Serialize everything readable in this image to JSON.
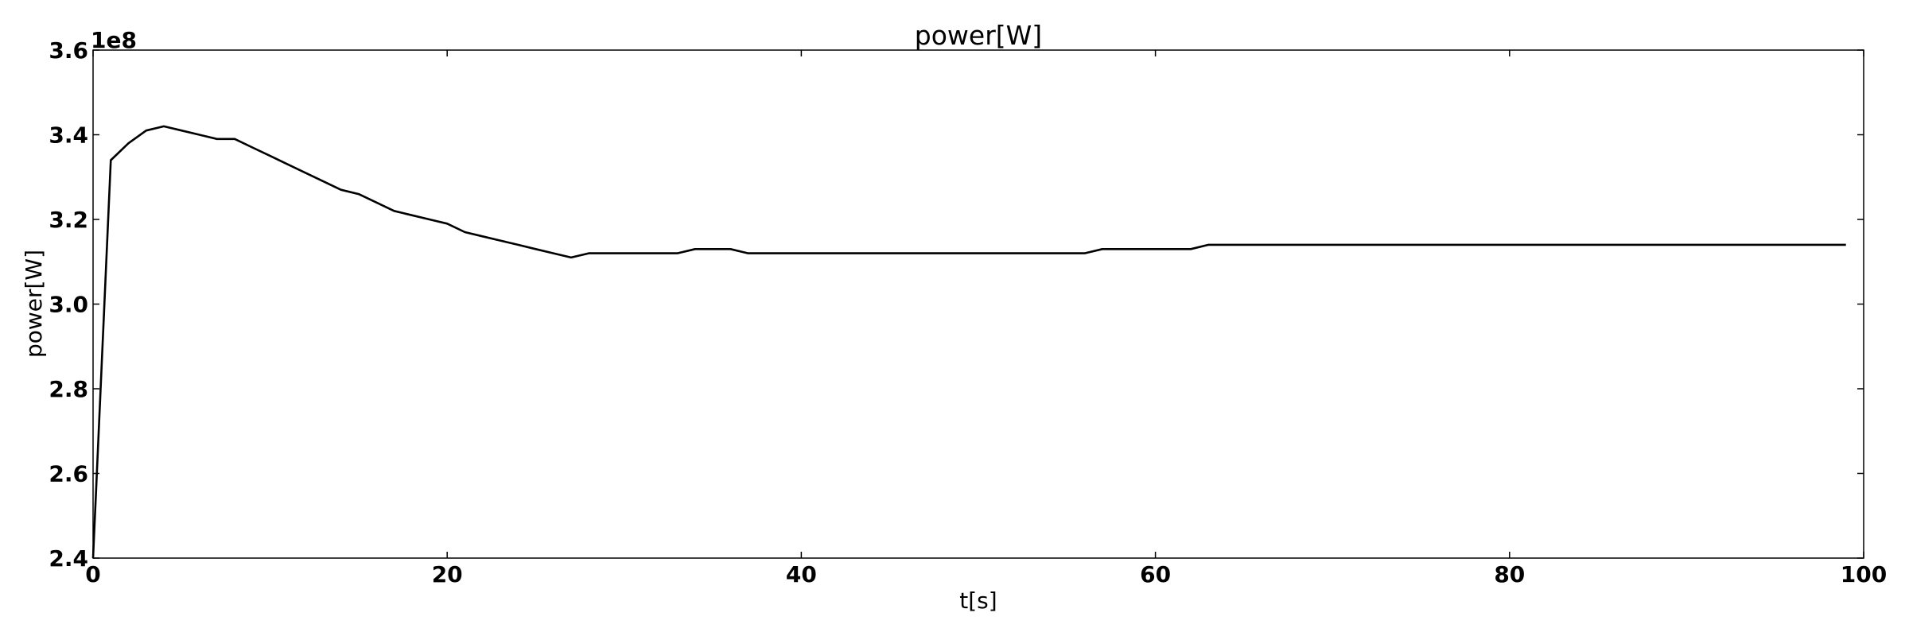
{
  "chart_data": {
    "type": "line",
    "title": "power[W]",
    "xlabel": "t[s]",
    "ylabel": "power[W]",
    "y_offset_label": "1e8",
    "xlim": [
      0,
      100
    ],
    "ylim": [
      2.4,
      3.6
    ],
    "y_scale_factor": 100000000,
    "grid": false,
    "line_color": "#000000",
    "xticks": [
      0,
      20,
      40,
      60,
      80,
      100
    ],
    "xtick_labels": [
      "0",
      "20",
      "40",
      "60",
      "80",
      "100"
    ],
    "yticks": [
      2.4,
      2.6,
      2.8,
      3.0,
      3.2,
      3.4,
      3.6
    ],
    "ytick_labels": [
      "2.4",
      "2.6",
      "2.8",
      "3.0",
      "3.2",
      "3.4",
      "3.6"
    ],
    "series": [
      {
        "x": [
          0,
          1,
          2,
          3,
          4,
          5,
          6,
          7,
          8,
          9,
          10,
          11,
          12,
          13,
          14,
          15,
          16,
          17,
          18,
          19,
          20,
          21,
          22,
          23,
          24,
          25,
          26,
          27,
          28,
          29,
          30,
          31,
          32,
          33,
          34,
          35,
          36,
          37,
          38,
          39,
          40,
          41,
          42,
          43,
          44,
          45,
          46,
          47,
          48,
          49,
          50,
          51,
          52,
          53,
          54,
          55,
          56,
          57,
          58,
          59,
          60,
          61,
          62,
          63,
          64,
          65,
          66,
          67,
          68,
          69,
          70,
          71,
          72,
          73,
          74,
          75,
          76,
          77,
          78,
          79,
          80,
          81,
          82,
          83,
          84,
          85,
          86,
          87,
          88,
          89,
          90,
          91,
          92,
          93,
          94,
          95,
          96,
          97,
          98,
          99
        ],
        "y": [
          2.4,
          3.34,
          3.38,
          3.41,
          3.42,
          3.41,
          3.4,
          3.39,
          3.39,
          3.37,
          3.35,
          3.33,
          3.31,
          3.29,
          3.27,
          3.26,
          3.24,
          3.22,
          3.21,
          3.2,
          3.19,
          3.17,
          3.16,
          3.15,
          3.14,
          3.13,
          3.12,
          3.11,
          3.12,
          3.12,
          3.12,
          3.12,
          3.12,
          3.12,
          3.13,
          3.13,
          3.13,
          3.12,
          3.12,
          3.12,
          3.12,
          3.12,
          3.12,
          3.12,
          3.12,
          3.12,
          3.12,
          3.12,
          3.12,
          3.12,
          3.12,
          3.12,
          3.12,
          3.12,
          3.12,
          3.12,
          3.12,
          3.13,
          3.13,
          3.13,
          3.13,
          3.13,
          3.13,
          3.14,
          3.14,
          3.14,
          3.14,
          3.14,
          3.14,
          3.14,
          3.14,
          3.14,
          3.14,
          3.14,
          3.14,
          3.14,
          3.14,
          3.14,
          3.14,
          3.14,
          3.14,
          3.14,
          3.14,
          3.14,
          3.14,
          3.14,
          3.14,
          3.14,
          3.14,
          3.14,
          3.14,
          3.14,
          3.14,
          3.14,
          3.14,
          3.14,
          3.14,
          3.14,
          3.14,
          3.14
        ]
      }
    ]
  }
}
